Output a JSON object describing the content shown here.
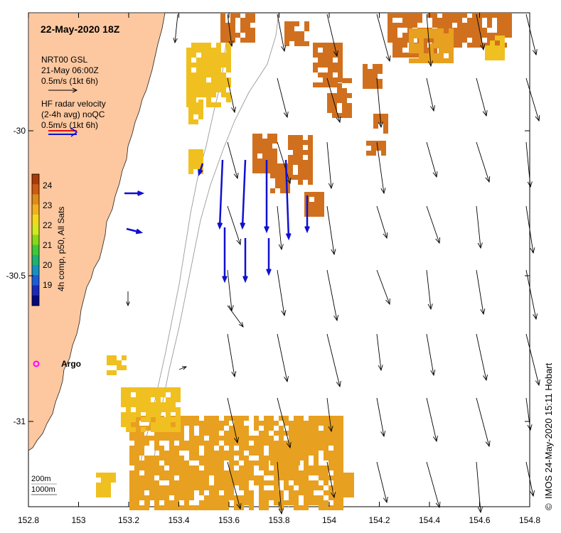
{
  "map": {
    "date_title": "22-May-2020 18Z",
    "gsl_legend": {
      "line1": "NRT00 GSL",
      "line2": "21-May 06:00Z",
      "line3": "0.5m/s (1kt 6h)"
    },
    "hf_legend": {
      "line1": "HF radar velocity",
      "line2": "(2-4h avg) noQC",
      "line3": "0.5m/s (1kt 6h)"
    },
    "colorbar": {
      "label": "4h comp, p50, All Sats",
      "ticks": [
        "24",
        "23",
        "22",
        "21",
        "20",
        "19"
      ],
      "colors": [
        "#ab3a08",
        "#cc5a10",
        "#e08a18",
        "#f0b020",
        "#f2d81c",
        "#d2e820",
        "#88d818",
        "#40c838",
        "#20b070",
        "#1890c0",
        "#1c5cd8",
        "#1a2ab8",
        "#08087a"
      ]
    },
    "x_ticks": [
      "152.8",
      "153",
      "153.2",
      "153.4",
      "153.6",
      "153.8",
      "154",
      "154.2",
      "154.4",
      "154.6",
      "154.8"
    ],
    "y_ticks": [
      "-30",
      "-30.5",
      "-31"
    ],
    "argo_label": "Argo",
    "depth_legend": {
      "line1": "200m",
      "line2": "1000m"
    },
    "credit": "IMOS 24-May-2020 15:11 Hobart",
    "copyright_symbol": "©",
    "colors": {
      "land": "#fdc8a0",
      "sst_warm": "#d0701e",
      "sst_mid": "#e8a020",
      "sst_yellow": "#f0c020",
      "hf_arrow": "#1010d0",
      "argo": "#ff00ff"
    }
  }
}
